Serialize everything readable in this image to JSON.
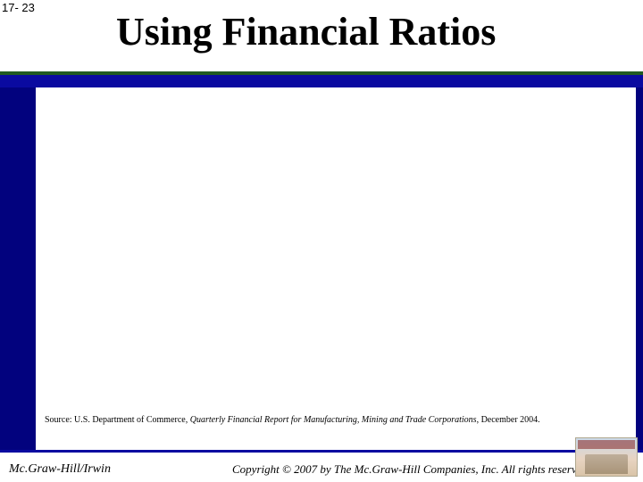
{
  "page_number": "17- 23",
  "title": "Using Financial Ratios",
  "source": {
    "prefix": "Source: U.S. Department of Commerce, ",
    "italic": "Quarterly Financial Report for Manufacturing, Mining and Trade Corporations",
    "suffix": ", December 2004."
  },
  "footer": {
    "publisher": "Mc.Graw-Hill/Irwin",
    "copyright": "Copyright © 2007 by The Mc.Graw-Hill Companies, Inc. All rights reserved"
  },
  "colors": {
    "slide_bg": "#02027e",
    "green_line": "#215a21",
    "blue_band": "#0a0aa0",
    "white": "#ffffff"
  }
}
